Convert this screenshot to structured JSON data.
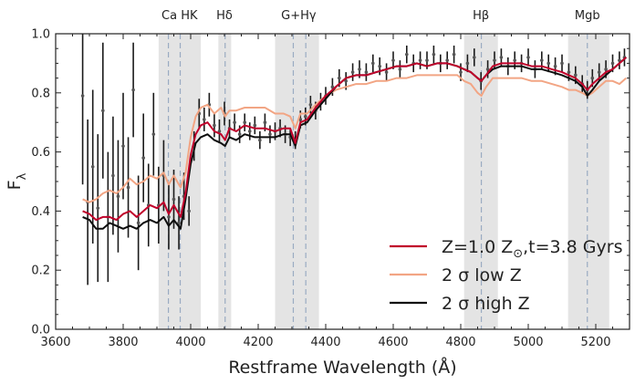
{
  "chart_data": {
    "type": "line",
    "title": "",
    "xlabel": "Restframe Wavelength (Å)",
    "ylabel_main": "F",
    "ylabel_sub": "λ",
    "xlim": [
      3600,
      5300
    ],
    "ylim": [
      0.0,
      1.0
    ],
    "xticks": [
      3600,
      3800,
      4000,
      4200,
      4400,
      4600,
      4800,
      5000,
      5200
    ],
    "yticks": [
      0.0,
      0.2,
      0.4,
      0.6,
      0.8,
      1.0
    ],
    "ytick_labels": [
      "0.0",
      "0.2",
      "0.4",
      "0.6",
      "0.8",
      "1.0"
    ],
    "grid": false,
    "legend_position": "lower-right",
    "spectral_features": [
      {
        "label": "Ca HK",
        "band": [
          3905,
          4030
        ],
        "lines": [
          3934,
          3969
        ],
        "label_x": 3967
      },
      {
        "label": "Hδ",
        "band": [
          4082,
          4120
        ],
        "lines": [
          4102
        ],
        "label_x": 4100
      },
      {
        "label": "G+Hγ",
        "band": [
          4250,
          4380
        ],
        "lines": [
          4304,
          4341
        ],
        "label_x": 4320
      },
      {
        "label": "Hβ",
        "band": [
          4810,
          4910
        ],
        "lines": [
          4861
        ],
        "label_x": 4860
      },
      {
        "label": "Mgb",
        "band": [
          5118,
          5240
        ],
        "lines": [
          5175
        ],
        "label_x": 5175
      }
    ],
    "observed": {
      "x": [
        3680,
        3695,
        3710,
        3725,
        3740,
        3755,
        3770,
        3785,
        3800,
        3815,
        3830,
        3845,
        3860,
        3875,
        3890,
        3905,
        3920,
        3935,
        3950,
        3965,
        3980,
        3995,
        4010,
        4025,
        4040,
        4055,
        4070,
        4085,
        4100,
        4115,
        4130,
        4145,
        4160,
        4175,
        4190,
        4205,
        4220,
        4235,
        4250,
        4265,
        4280,
        4295,
        4310,
        4325,
        4340,
        4355,
        4370,
        4385,
        4400,
        4420,
        4440,
        4460,
        4480,
        4500,
        4520,
        4540,
        4560,
        4580,
        4600,
        4620,
        4640,
        4660,
        4680,
        4700,
        4720,
        4740,
        4760,
        4780,
        4800,
        4820,
        4840,
        4860,
        4880,
        4900,
        4920,
        4940,
        4960,
        4980,
        5000,
        5020,
        5040,
        5060,
        5080,
        5100,
        5120,
        5140,
        5160,
        5175,
        5190,
        5210,
        5230,
        5250,
        5270,
        5285
      ],
      "y": [
        0.79,
        0.43,
        0.55,
        0.41,
        0.74,
        0.38,
        0.52,
        0.45,
        0.62,
        0.48,
        0.81,
        0.36,
        0.58,
        0.42,
        0.66,
        0.42,
        0.52,
        0.38,
        0.44,
        0.36,
        0.45,
        0.4,
        0.62,
        0.73,
        0.71,
        0.76,
        0.69,
        0.67,
        0.73,
        0.68,
        0.7,
        0.66,
        0.7,
        0.67,
        0.69,
        0.64,
        0.7,
        0.66,
        0.67,
        0.68,
        0.66,
        0.65,
        0.64,
        0.71,
        0.72,
        0.76,
        0.74,
        0.77,
        0.79,
        0.82,
        0.85,
        0.84,
        0.87,
        0.88,
        0.87,
        0.9,
        0.89,
        0.87,
        0.91,
        0.88,
        0.93,
        0.9,
        0.91,
        0.91,
        0.93,
        0.9,
        0.91,
        0.93,
        0.87,
        0.9,
        0.92,
        0.84,
        0.88,
        0.91,
        0.92,
        0.89,
        0.91,
        0.9,
        0.92,
        0.88,
        0.91,
        0.9,
        0.89,
        0.9,
        0.87,
        0.86,
        0.83,
        0.81,
        0.85,
        0.87,
        0.88,
        0.9,
        0.91,
        0.92
      ],
      "err": [
        0.3,
        0.28,
        0.26,
        0.25,
        0.23,
        0.22,
        0.2,
        0.19,
        0.18,
        0.17,
        0.16,
        0.16,
        0.15,
        0.14,
        0.14,
        0.13,
        0.12,
        0.11,
        0.1,
        0.09,
        0.08,
        0.05,
        0.05,
        0.05,
        0.04,
        0.04,
        0.04,
        0.04,
        0.04,
        0.03,
        0.03,
        0.03,
        0.03,
        0.03,
        0.03,
        0.03,
        0.03,
        0.03,
        0.03,
        0.03,
        0.03,
        0.03,
        0.03,
        0.03,
        0.03,
        0.03,
        0.03,
        0.03,
        0.03,
        0.03,
        0.03,
        0.03,
        0.03,
        0.03,
        0.03,
        0.03,
        0.03,
        0.03,
        0.03,
        0.03,
        0.03,
        0.03,
        0.03,
        0.03,
        0.03,
        0.03,
        0.03,
        0.03,
        0.03,
        0.03,
        0.03,
        0.03,
        0.03,
        0.03,
        0.03,
        0.03,
        0.03,
        0.03,
        0.03,
        0.03,
        0.03,
        0.03,
        0.03,
        0.03,
        0.03,
        0.03,
        0.03,
        0.03,
        0.03,
        0.03,
        0.03,
        0.03,
        0.03,
        0.03
      ]
    },
    "series": [
      {
        "name": "Z=1.0 Z",
        "name_sub": "⊙",
        "name_suffix": ",t=3.8 Gyrs",
        "color": "#c0002a",
        "x": [
          3680,
          3700,
          3720,
          3740,
          3760,
          3780,
          3800,
          3820,
          3840,
          3860,
          3880,
          3900,
          3920,
          3935,
          3950,
          3970,
          3985,
          4000,
          4015,
          4030,
          4050,
          4070,
          4090,
          4102,
          4115,
          4135,
          4160,
          4190,
          4220,
          4250,
          4275,
          4295,
          4310,
          4325,
          4345,
          4370,
          4400,
          4430,
          4460,
          4490,
          4520,
          4550,
          4580,
          4610,
          4640,
          4670,
          4700,
          4730,
          4760,
          4790,
          4810,
          4830,
          4850,
          4861,
          4875,
          4895,
          4920,
          4950,
          4980,
          5010,
          5040,
          5070,
          5100,
          5120,
          5140,
          5160,
          5175,
          5190,
          5210,
          5230,
          5250,
          5270,
          5290
        ],
        "y": [
          0.4,
          0.39,
          0.37,
          0.38,
          0.38,
          0.37,
          0.39,
          0.4,
          0.38,
          0.4,
          0.42,
          0.41,
          0.43,
          0.39,
          0.42,
          0.38,
          0.46,
          0.59,
          0.66,
          0.69,
          0.7,
          0.67,
          0.66,
          0.64,
          0.68,
          0.67,
          0.69,
          0.68,
          0.68,
          0.67,
          0.68,
          0.68,
          0.63,
          0.7,
          0.71,
          0.75,
          0.79,
          0.82,
          0.85,
          0.86,
          0.86,
          0.87,
          0.88,
          0.89,
          0.89,
          0.9,
          0.89,
          0.9,
          0.9,
          0.89,
          0.88,
          0.87,
          0.85,
          0.84,
          0.86,
          0.89,
          0.9,
          0.9,
          0.9,
          0.89,
          0.89,
          0.88,
          0.87,
          0.86,
          0.85,
          0.83,
          0.81,
          0.83,
          0.85,
          0.87,
          0.88,
          0.9,
          0.92
        ]
      },
      {
        "name": "2 σ low Z",
        "color": "#f2a584",
        "x": [
          3680,
          3700,
          3720,
          3740,
          3760,
          3780,
          3800,
          3820,
          3840,
          3860,
          3880,
          3900,
          3920,
          3935,
          3950,
          3970,
          3985,
          4000,
          4015,
          4030,
          4050,
          4070,
          4090,
          4102,
          4115,
          4135,
          4160,
          4190,
          4220,
          4250,
          4275,
          4295,
          4310,
          4325,
          4345,
          4370,
          4400,
          4430,
          4460,
          4490,
          4520,
          4550,
          4580,
          4610,
          4640,
          4670,
          4700,
          4730,
          4760,
          4790,
          4810,
          4830,
          4850,
          4861,
          4875,
          4895,
          4920,
          4950,
          4980,
          5010,
          5040,
          5070,
          5100,
          5120,
          5140,
          5160,
          5175,
          5190,
          5210,
          5230,
          5250,
          5270,
          5290
        ],
        "y": [
          0.44,
          0.43,
          0.44,
          0.46,
          0.47,
          0.46,
          0.48,
          0.51,
          0.49,
          0.5,
          0.52,
          0.51,
          0.53,
          0.49,
          0.52,
          0.48,
          0.53,
          0.65,
          0.72,
          0.75,
          0.76,
          0.73,
          0.75,
          0.72,
          0.74,
          0.74,
          0.75,
          0.75,
          0.75,
          0.73,
          0.73,
          0.72,
          0.68,
          0.73,
          0.73,
          0.76,
          0.79,
          0.81,
          0.82,
          0.83,
          0.83,
          0.84,
          0.84,
          0.85,
          0.85,
          0.86,
          0.86,
          0.86,
          0.86,
          0.86,
          0.84,
          0.83,
          0.8,
          0.79,
          0.82,
          0.85,
          0.85,
          0.85,
          0.85,
          0.84,
          0.84,
          0.83,
          0.82,
          0.81,
          0.81,
          0.8,
          0.79,
          0.8,
          0.82,
          0.84,
          0.84,
          0.83,
          0.85
        ]
      },
      {
        "name": "2 σ high Z",
        "color": "#0d0d0d",
        "x": [
          3680,
          3700,
          3720,
          3740,
          3760,
          3780,
          3800,
          3820,
          3840,
          3860,
          3880,
          3900,
          3920,
          3935,
          3950,
          3970,
          3985,
          4000,
          4015,
          4030,
          4050,
          4070,
          4090,
          4102,
          4115,
          4135,
          4160,
          4190,
          4220,
          4250,
          4275,
          4295,
          4310,
          4325,
          4345,
          4370,
          4400,
          4430,
          4460,
          4490,
          4520,
          4550,
          4580,
          4610,
          4640,
          4670,
          4700,
          4730,
          4760,
          4790,
          4810,
          4830,
          4850,
          4861,
          4875,
          4895,
          4920,
          4950,
          4980,
          5010,
          5040,
          5070,
          5100,
          5120,
          5140,
          5160,
          5175,
          5190,
          5210,
          5230,
          5250,
          5270,
          5290
        ],
        "y": [
          0.38,
          0.37,
          0.34,
          0.34,
          0.36,
          0.35,
          0.34,
          0.35,
          0.34,
          0.36,
          0.37,
          0.36,
          0.38,
          0.35,
          0.37,
          0.34,
          0.44,
          0.56,
          0.63,
          0.65,
          0.66,
          0.64,
          0.63,
          0.62,
          0.65,
          0.64,
          0.66,
          0.65,
          0.65,
          0.65,
          0.66,
          0.66,
          0.62,
          0.69,
          0.7,
          0.74,
          0.78,
          0.82,
          0.85,
          0.86,
          0.86,
          0.87,
          0.88,
          0.89,
          0.89,
          0.9,
          0.89,
          0.9,
          0.9,
          0.89,
          0.88,
          0.87,
          0.85,
          0.84,
          0.86,
          0.88,
          0.89,
          0.89,
          0.89,
          0.88,
          0.88,
          0.87,
          0.86,
          0.85,
          0.84,
          0.82,
          0.79,
          0.81,
          0.84,
          0.86,
          0.88,
          0.9,
          0.92
        ]
      }
    ]
  }
}
